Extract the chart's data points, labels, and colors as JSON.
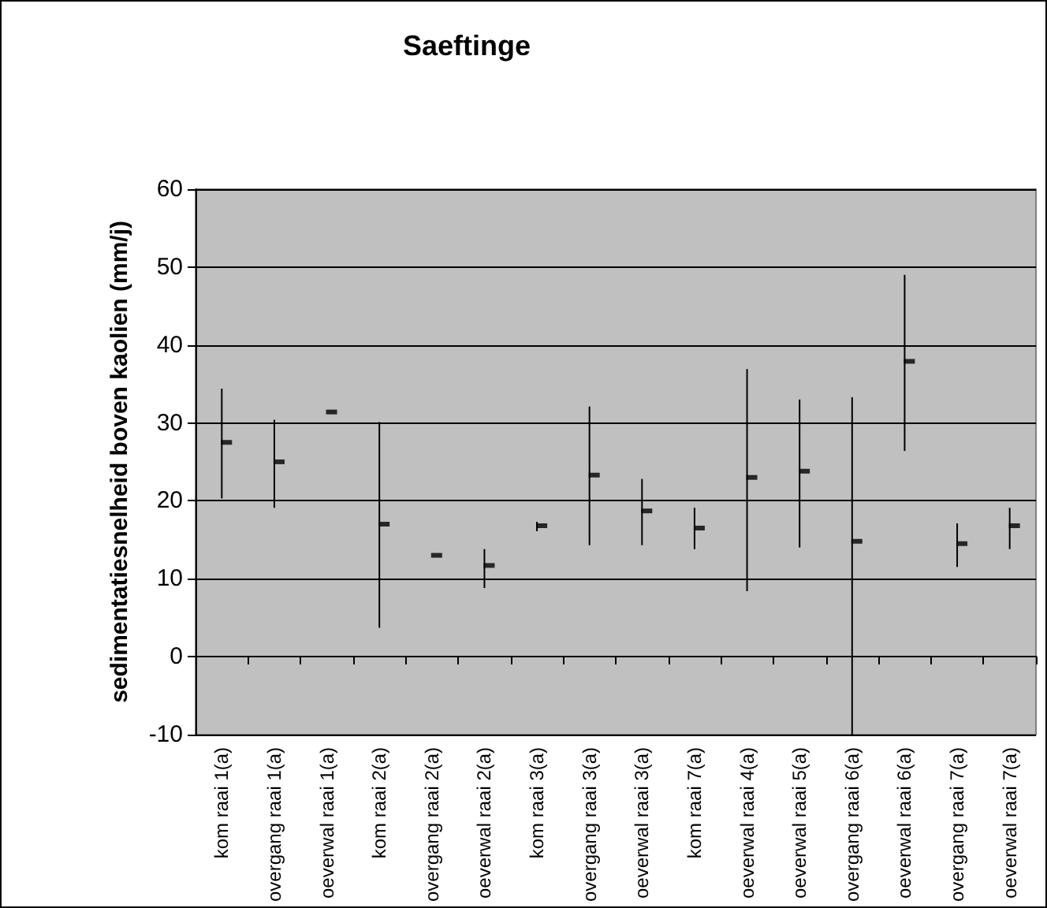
{
  "chart_data": {
    "type": "scatter",
    "title": "Saeftinge",
    "ylabel": "sedimentatiesnelheid boven kaolien (mm/j)",
    "categories": [
      "kom raai 1(a)",
      "overgang raai 1(a)",
      "oeverwal raai 1(a)",
      "kom raai 2(a)",
      "overgang raai 2(a)",
      "oeverwal raai 2(a)",
      "kom raai 3(a)",
      "overgang raai 3(a)",
      "oeverwal raai 3(a)",
      "kom raai 7(a)",
      "oeverwal raai 4(a)",
      "oeverwal raai 5(a)",
      "overgang raai 6(a)",
      "oeverwal raai 6(a)",
      "overgang raai 7(a)",
      "oeverwal raai 7(a)"
    ],
    "series": [
      {
        "color": "#000000",
        "values": [
          27.5,
          25.0,
          31.4,
          17.0,
          13.0,
          11.7,
          16.8,
          23.3,
          18.7,
          16.5,
          23.0,
          23.8,
          14.8,
          37.9,
          14.5,
          16.8
        ],
        "errors": [
          [
            20.3,
            34.4
          ],
          [
            19.1,
            30.4
          ],
          null,
          [
            3.7,
            30.1
          ],
          null,
          [
            8.8,
            13.8
          ],
          [
            16.1,
            17.3
          ],
          [
            14.3,
            32.1
          ],
          [
            14.3,
            22.8
          ],
          [
            13.8,
            19.1
          ],
          [
            8.4,
            36.9
          ],
          [
            14.0,
            33.0
          ],
          [
            -10,
            33.3
          ],
          [
            26.4,
            49.0
          ],
          [
            11.5,
            17.1
          ],
          [
            13.8,
            19.1
          ]
        ]
      }
    ],
    "ylim": [
      -10,
      60
    ],
    "yticks": [
      -10,
      0,
      10,
      20,
      30,
      40,
      50,
      60
    ],
    "grid": "y"
  }
}
